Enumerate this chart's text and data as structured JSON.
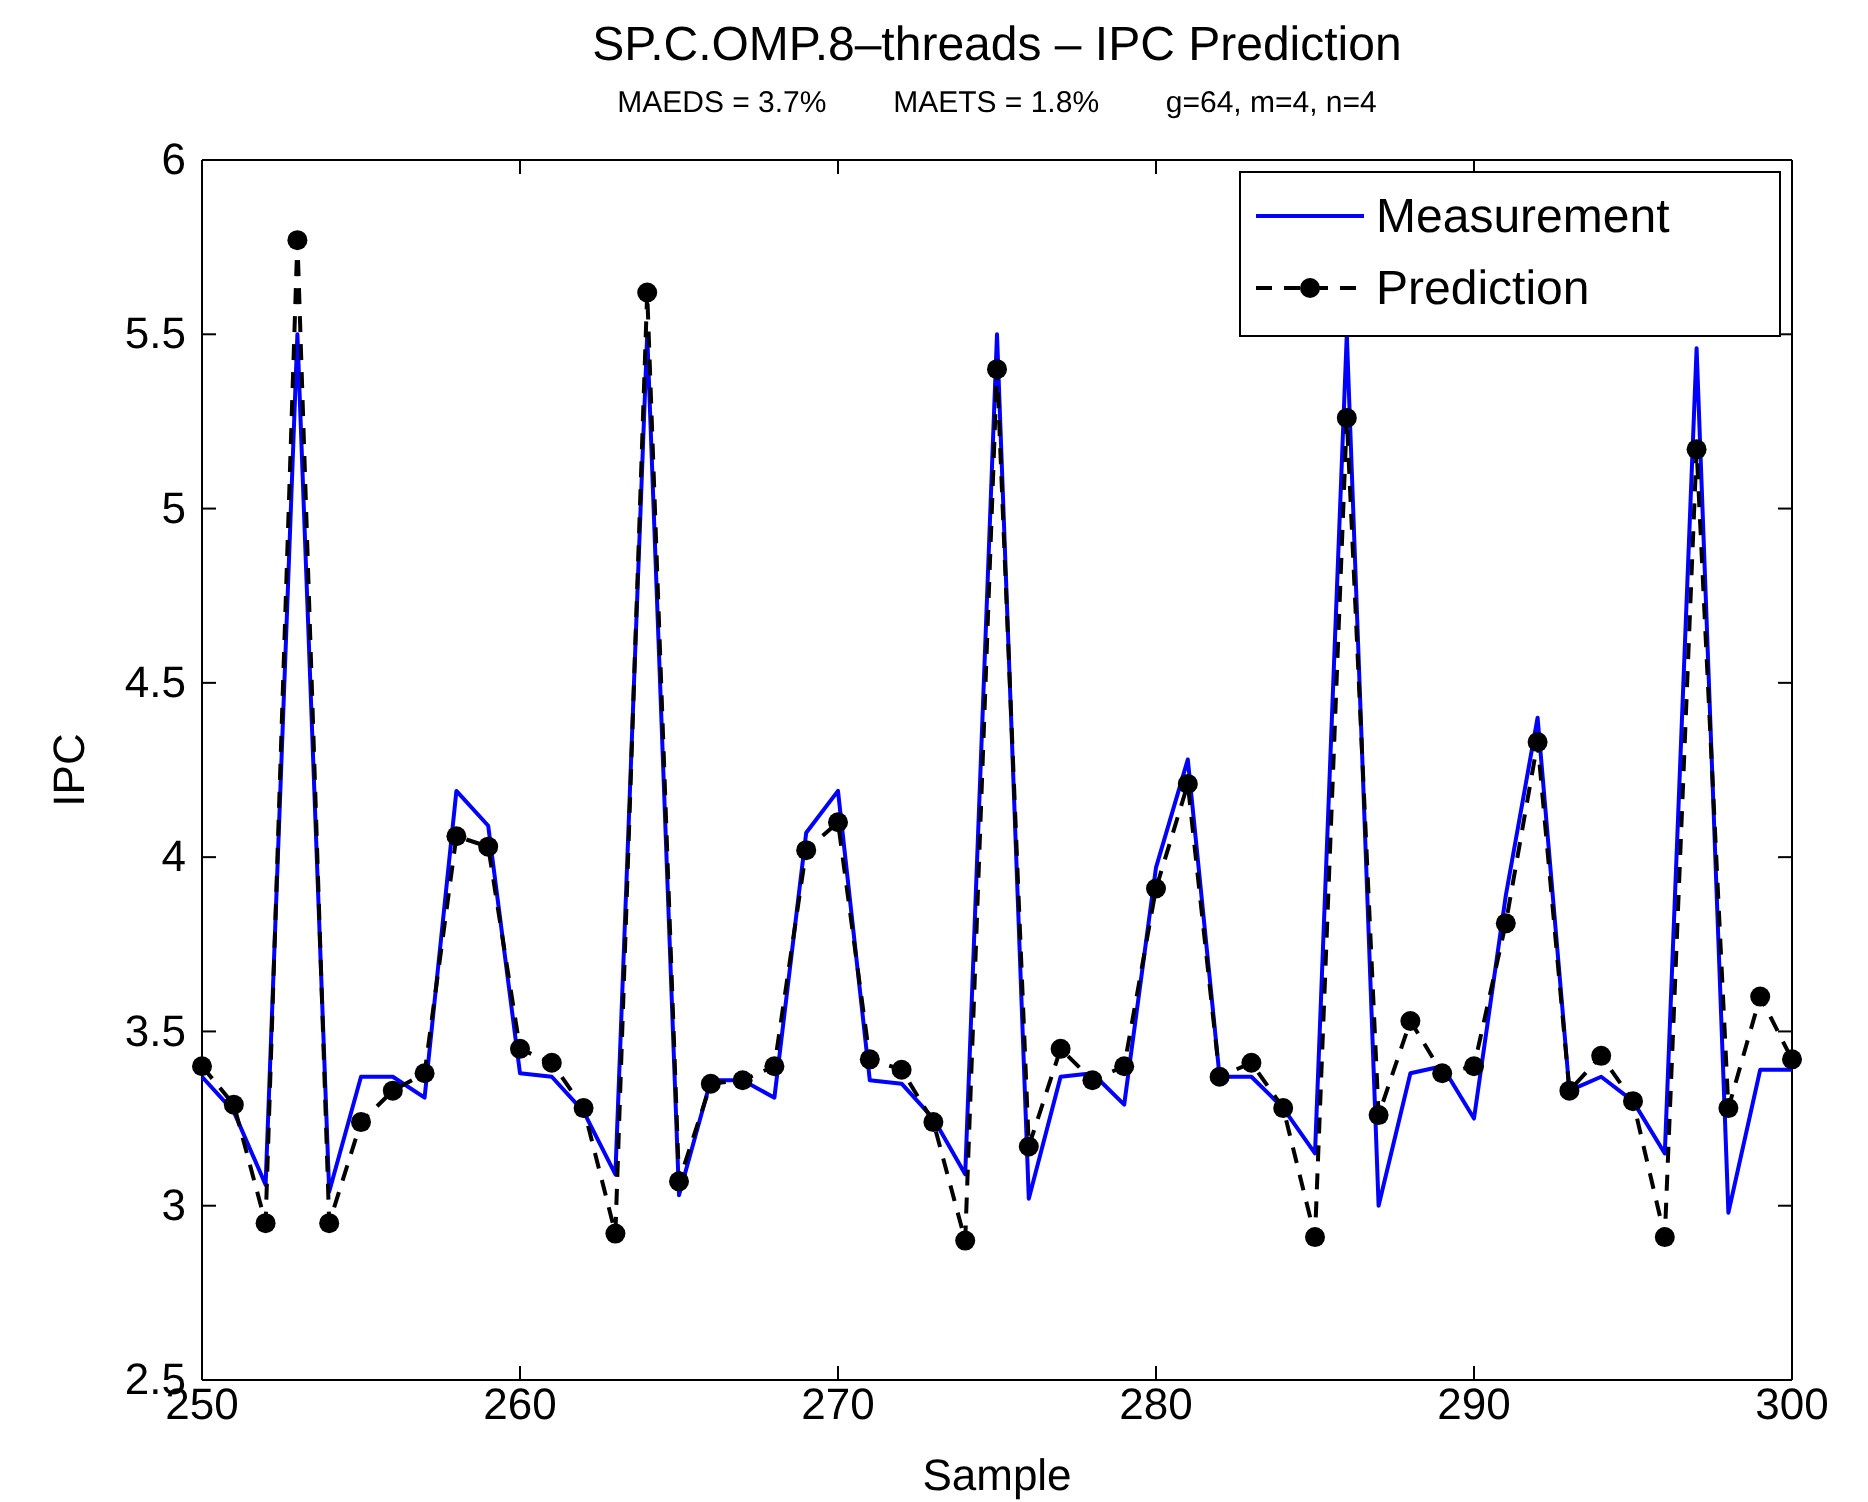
{
  "chart_data": {
    "type": "line",
    "title": "SP.C.OMP.8–threads – IPC Prediction",
    "subtitle": "MAEDS = 3.7%        MAETS = 1.8%        g=64, m=4, n=4",
    "xlabel": "Sample",
    "ylabel": "IPC",
    "x": [
      250,
      251,
      252,
      253,
      254,
      255,
      256,
      257,
      258,
      259,
      260,
      261,
      262,
      263,
      264,
      265,
      266,
      267,
      268,
      269,
      270,
      271,
      272,
      273,
      274,
      275,
      276,
      277,
      278,
      279,
      280,
      281,
      282,
      283,
      284,
      285,
      286,
      287,
      288,
      289,
      290,
      291,
      292,
      293,
      294,
      295,
      296,
      297,
      298,
      299,
      300
    ],
    "series": [
      {
        "name": "Measurement",
        "color": "#0000ff",
        "line_style": "solid",
        "marker": "none",
        "values": [
          3.37,
          3.27,
          3.06,
          5.5,
          3.04,
          3.37,
          3.37,
          3.31,
          4.19,
          4.09,
          3.38,
          3.37,
          3.27,
          3.09,
          5.5,
          3.03,
          3.36,
          3.36,
          3.31,
          4.07,
          4.19,
          3.36,
          3.35,
          3.25,
          3.09,
          5.5,
          3.02,
          3.37,
          3.38,
          3.29,
          3.97,
          4.28,
          3.37,
          3.37,
          3.28,
          3.15,
          5.5,
          3.0,
          3.38,
          3.4,
          3.25,
          3.89,
          4.4,
          3.33,
          3.37,
          3.3,
          3.15,
          5.46,
          2.98,
          3.39,
          3.39
        ]
      },
      {
        "name": "Prediction",
        "color": "#000000",
        "line_style": "dashed",
        "marker": "circle",
        "values": [
          3.4,
          3.29,
          2.95,
          5.77,
          2.95,
          3.24,
          3.33,
          3.38,
          4.06,
          4.03,
          3.45,
          3.41,
          3.28,
          2.92,
          5.62,
          3.07,
          3.35,
          3.36,
          3.4,
          4.02,
          4.1,
          3.42,
          3.39,
          3.24,
          2.9,
          5.4,
          3.17,
          3.45,
          3.36,
          3.4,
          3.91,
          4.21,
          3.37,
          3.41,
          3.28,
          2.91,
          5.26,
          3.26,
          3.53,
          3.38,
          3.4,
          3.81,
          4.33,
          3.33,
          3.43,
          3.3,
          2.91,
          5.17,
          3.28,
          3.6,
          3.42
        ]
      }
    ],
    "xlim": [
      250,
      300
    ],
    "xticks": [
      250,
      260,
      270,
      280,
      290,
      300
    ],
    "ylim": [
      2.5,
      6
    ],
    "yticks": [
      2.5,
      3,
      3.5,
      4,
      4.5,
      5,
      5.5,
      6
    ],
    "grid": false,
    "legend": "top right"
  }
}
